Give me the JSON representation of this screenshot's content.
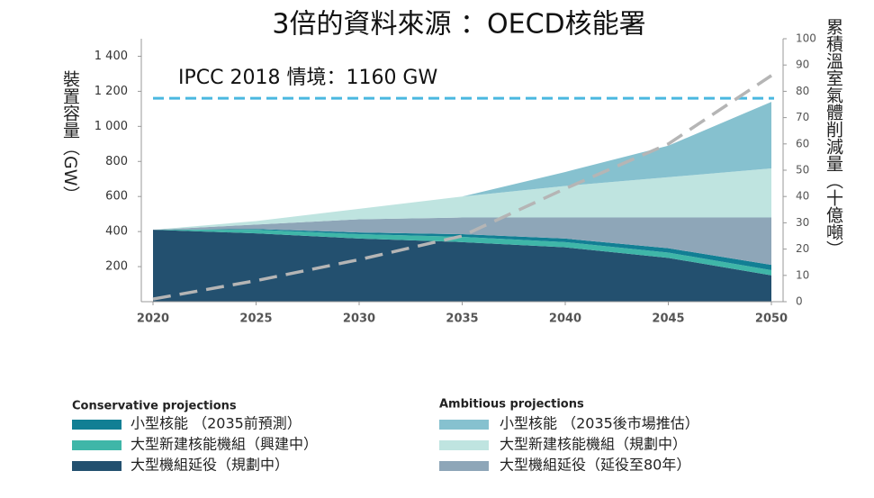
{
  "chart_data": {
    "type": "area",
    "title": "3倍的資料來源 ：OECD核能署",
    "ylabel": "裝置容量（GW）",
    "y2label": "累積溫室氣體削減量（十億噸）",
    "x": [
      2020,
      2025,
      2030,
      2035,
      2040,
      2045,
      2050
    ],
    "xlim": [
      2020,
      2050
    ],
    "xticks": [
      2020,
      2025,
      2030,
      2035,
      2040,
      2045,
      2050
    ],
    "ylim": [
      0,
      1500
    ],
    "yticks": [
      200,
      400,
      600,
      800,
      {
        "value": 1000,
        "label": "1 000"
      },
      {
        "value": 1200,
        "label": "1 200"
      },
      {
        "value": 1400,
        "label": "1 400"
      }
    ],
    "y2lim": [
      0,
      100
    ],
    "y2ticks": [
      0,
      10,
      20,
      30,
      40,
      50,
      60,
      70,
      80,
      90,
      100
    ],
    "stacked": true,
    "series": [
      {
        "name": "大型機組延役（規劃中）",
        "color": "#23506f",
        "values": [
          410,
          390,
          360,
          340,
          310,
          250,
          150
        ]
      },
      {
        "name": "大型新建核能機組（興建中）",
        "color": "#3fb6a8",
        "values": [
          0,
          20,
          25,
          30,
          30,
          30,
          30
        ]
      },
      {
        "name": "小型核能 （2035前預測）",
        "color": "#127f94",
        "values": [
          0,
          5,
          10,
          15,
          20,
          25,
          30
        ]
      },
      {
        "name": "大型機組延役（延役至80年）",
        "color": "#8ea6b8",
        "values": [
          0,
          25,
          75,
          95,
          120,
          175,
          270
        ]
      },
      {
        "name": "大型新建核能機組（規劃中）",
        "color": "#bfe4e0",
        "values": [
          0,
          20,
          60,
          120,
          180,
          230,
          280
        ]
      },
      {
        "name": "小型核能 （2035後市場推估）",
        "color": "#86c1cf",
        "values": [
          0,
          0,
          0,
          0,
          80,
          180,
          380
        ]
      }
    ],
    "legend_groups": [
      "Conservative projections",
      "Ambitious projections"
    ],
    "lines": [
      {
        "color": "#b5b5b5",
        "axis": "y2",
        "values": [
          1,
          8,
          16,
          25,
          43,
          60,
          86
        ]
      }
    ],
    "reference_line": {
      "value": 1160,
      "label": "IPCC 2018 情境：1160 GW",
      "color": "#4ab8e0"
    }
  }
}
